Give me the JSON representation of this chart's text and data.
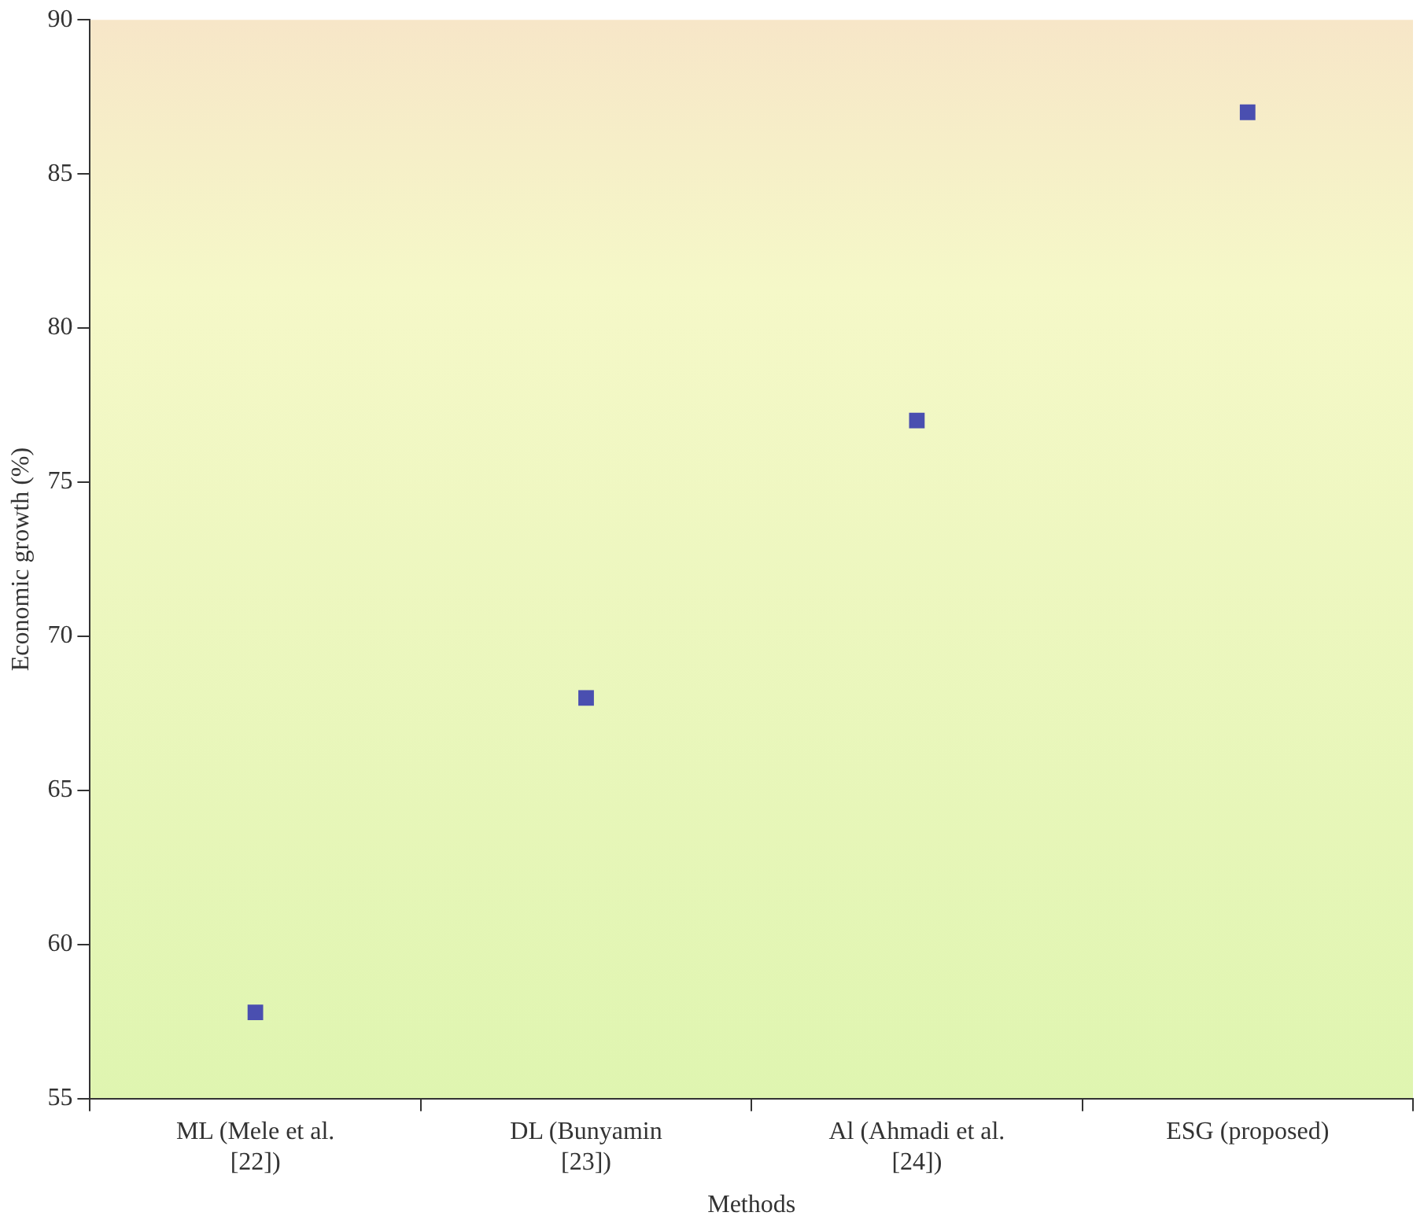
{
  "chart_data": {
    "type": "scatter",
    "xlabel": "Methods",
    "ylabel": "Economic growth (%)",
    "categories": [
      "ML (Mele et al. [22])",
      "DL (Bunyamin [23])",
      "Al (Ahmadi et al. [24])",
      "ESG (proposed)"
    ],
    "values": [
      57.8,
      68,
      77,
      87
    ],
    "color": "#4a4fb0",
    "marker": "square",
    "ylim": [
      55,
      90
    ],
    "yticks": [
      55,
      60,
      65,
      70,
      75,
      80,
      85,
      90
    ],
    "grid": false,
    "legend": false
  }
}
